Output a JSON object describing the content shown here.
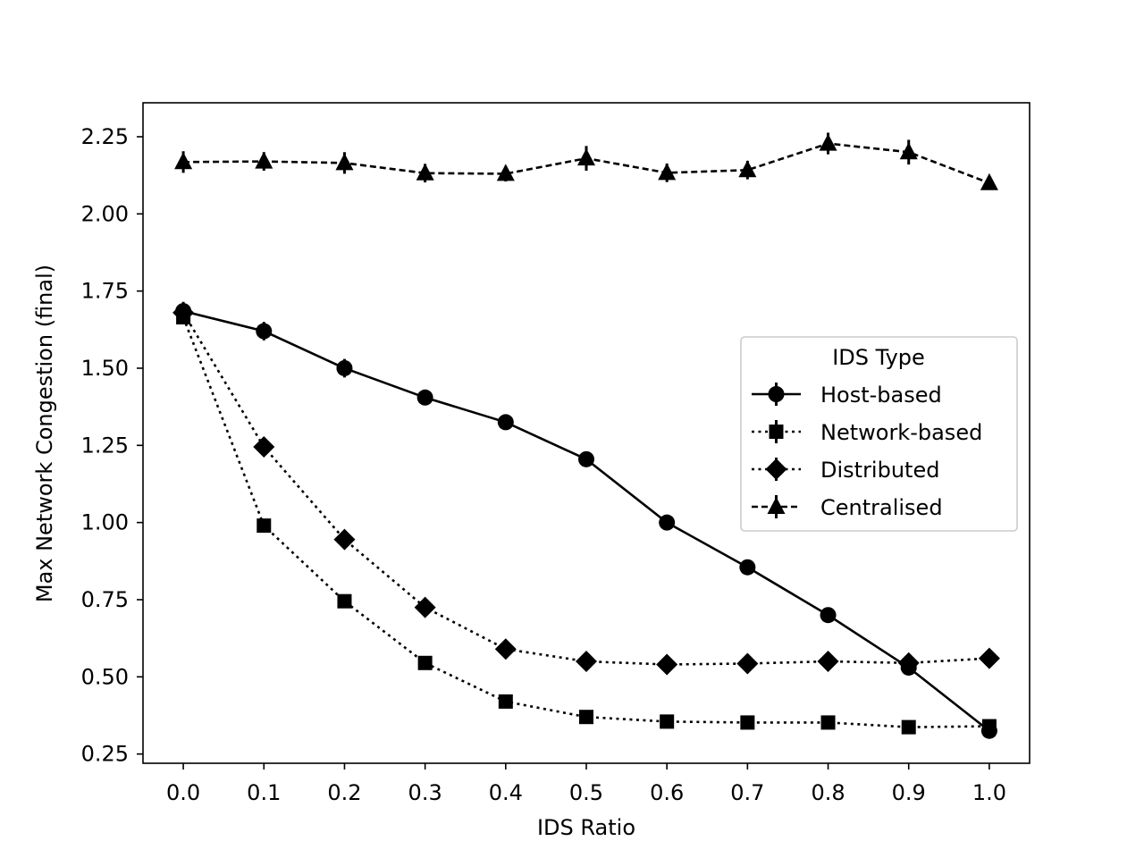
{
  "chart_data": {
    "type": "line",
    "title": "",
    "xlabel": "IDS Ratio",
    "ylabel": "Max Network Congestion (final)",
    "x": [
      0.0,
      0.1,
      0.2,
      0.3,
      0.4,
      0.5,
      0.6,
      0.7,
      0.8,
      0.9,
      1.0
    ],
    "x_tick_labels": [
      "0.0",
      "0.1",
      "0.2",
      "0.3",
      "0.4",
      "0.5",
      "0.6",
      "0.7",
      "0.8",
      "0.9",
      "1.0"
    ],
    "y_ticks": [
      0.25,
      0.5,
      0.75,
      1.0,
      1.25,
      1.5,
      1.75,
      2.0,
      2.25
    ],
    "y_tick_labels": [
      "0.25",
      "0.50",
      "0.75",
      "1.00",
      "1.25",
      "1.50",
      "1.75",
      "2.00",
      "2.25"
    ],
    "xlim": [
      -0.05,
      1.05
    ],
    "ylim": [
      0.22,
      2.36
    ],
    "grid": false,
    "legend": {
      "title": "IDS Type",
      "placement": "center-right"
    },
    "series": [
      {
        "name": "Host-based",
        "marker": "circle",
        "linestyle": "solid",
        "values": [
          1.685,
          1.62,
          1.5,
          1.405,
          1.325,
          1.205,
          1.0,
          0.855,
          0.7,
          0.53,
          0.325
        ],
        "errors": [
          0.03,
          0.03,
          0.03,
          0.02,
          0.02,
          0.015,
          0.015,
          0.015,
          0.015,
          0.015,
          0.015
        ]
      },
      {
        "name": "Network-based",
        "marker": "square",
        "linestyle": "dotted",
        "values": [
          1.665,
          0.99,
          0.745,
          0.545,
          0.42,
          0.37,
          0.355,
          0.352,
          0.352,
          0.337,
          0.34
        ],
        "errors": [
          0.02,
          0.02,
          0.015,
          0.015,
          0.01,
          0.01,
          0.01,
          0.01,
          0.01,
          0.01,
          0.01
        ]
      },
      {
        "name": "Distributed",
        "marker": "diamond",
        "linestyle": "dotted",
        "values": [
          1.68,
          1.245,
          0.945,
          0.725,
          0.59,
          0.55,
          0.54,
          0.543,
          0.55,
          0.545,
          0.56
        ],
        "errors": [
          0.02,
          0.02,
          0.015,
          0.015,
          0.01,
          0.01,
          0.01,
          0.01,
          0.01,
          0.01,
          0.01
        ]
      },
      {
        "name": "Centralised",
        "marker": "triangle",
        "linestyle": "dashed",
        "values": [
          2.168,
          2.17,
          2.165,
          2.132,
          2.13,
          2.18,
          2.133,
          2.142,
          2.228,
          2.2,
          2.1
        ],
        "errors": [
          0.035,
          0.03,
          0.035,
          0.03,
          0.025,
          0.04,
          0.03,
          0.03,
          0.035,
          0.04,
          0.02
        ]
      }
    ]
  }
}
